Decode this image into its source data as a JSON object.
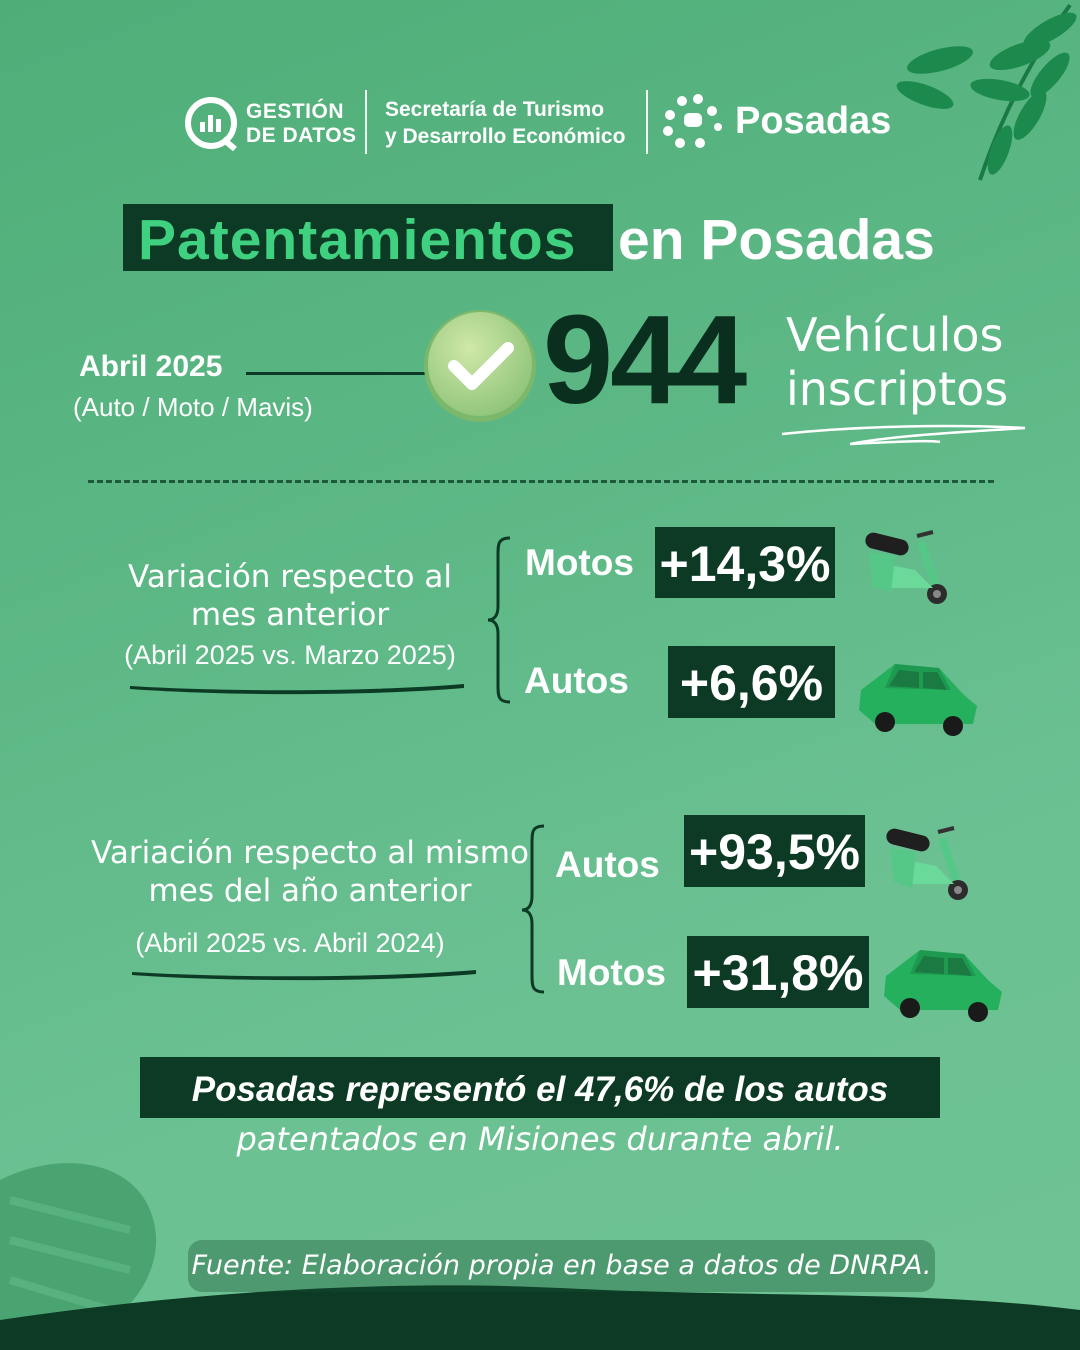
{
  "header": {
    "gestion_line1": "GESTIÓN",
    "gestion_line2": "DE DATOS",
    "secretaria_line1": "Secretaría de Turismo",
    "secretaria_line2": "y Desarrollo Económico",
    "posadas": "Posadas"
  },
  "title": {
    "highlight": "Patentamientos",
    "rest": "en Posadas"
  },
  "summary": {
    "period": "Abril 2025",
    "types": "(Auto / Moto / Mavis)",
    "total": "944",
    "label_line1": "Vehículos",
    "label_line2": "inscriptos"
  },
  "monthly": {
    "label_line1": "Variación respecto al",
    "label_line2": "mes anterior",
    "comparison": "(Abril 2025 vs. Marzo 2025)",
    "items": [
      {
        "category": "Motos",
        "value": "+14,3%",
        "icon": "scooter-icon"
      },
      {
        "category": "Autos",
        "value": "+6,6%",
        "icon": "car-icon"
      }
    ]
  },
  "yearly": {
    "label_line1": "Variación respecto al mismo",
    "label_line2": "mes del año anterior",
    "comparison": "(Abril 2025 vs. Abril 2024)",
    "items": [
      {
        "category": "Autos",
        "value": "+93,5%",
        "icon": "scooter-icon"
      },
      {
        "category": "Motos",
        "value": "+31,8%",
        "icon": "car-icon"
      }
    ]
  },
  "note": {
    "line1": "Posadas representó el 47,6% de los autos",
    "line2": "patentados en Misiones durante abril."
  },
  "source": "Fuente: Elaboración propia en base a datos de DNRPA.",
  "colors": {
    "background": "#5db886",
    "dark_green": "#0c3a24",
    "accent_green": "#3fd080",
    "vehicle_green": "#27b35f"
  }
}
